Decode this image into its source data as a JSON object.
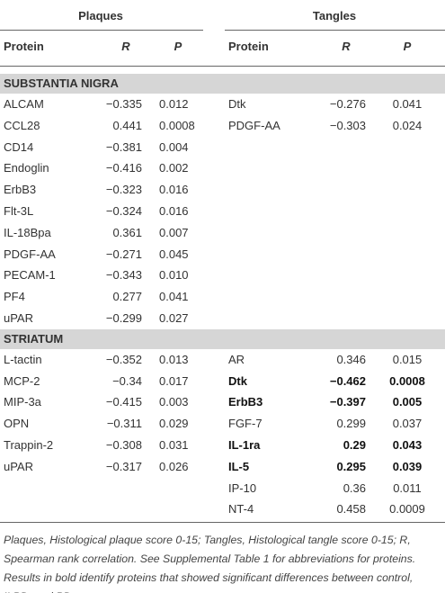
{
  "table": {
    "groups": [
      "Plaques",
      "Tangles"
    ],
    "columns": [
      "Protein",
      "R",
      "P",
      "Protein",
      "R",
      "P"
    ],
    "sections": [
      {
        "title": "SUBSTANTIA NIGRA",
        "plaques": [
          {
            "protein": "ALCAM",
            "r": "−0.335",
            "p": "0.012"
          },
          {
            "protein": "CCL28",
            "r": "0.441",
            "p": "0.0008"
          },
          {
            "protein": "CD14",
            "r": "−0.381",
            "p": "0.004"
          },
          {
            "protein": "Endoglin",
            "r": "−0.416",
            "p": "0.002"
          },
          {
            "protein": "ErbB3",
            "r": "−0.323",
            "p": "0.016"
          },
          {
            "protein": "Flt-3L",
            "r": "−0.324",
            "p": "0.016"
          },
          {
            "protein": "IL-18Bpa",
            "r": "0.361",
            "p": "0.007"
          },
          {
            "protein": "PDGF-AA",
            "r": "−0.271",
            "p": "0.045"
          },
          {
            "protein": "PECAM-1",
            "r": "−0.343",
            "p": "0.010"
          },
          {
            "protein": "PF4",
            "r": "0.277",
            "p": "0.041"
          },
          {
            "protein": "uPAR",
            "r": "−0.299",
            "p": "0.027"
          }
        ],
        "tangles": [
          {
            "protein": "Dtk",
            "r": "−0.276",
            "p": "0.041"
          },
          {
            "protein": "PDGF-AA",
            "r": "−0.303",
            "p": "0.024"
          }
        ]
      },
      {
        "title": "STRIATUM",
        "plaques": [
          {
            "protein": "L-tactin",
            "r": "−0.352",
            "p": "0.013"
          },
          {
            "protein": "MCP-2",
            "r": "−0.34",
            "p": "0.017"
          },
          {
            "protein": "MIP-3a",
            "r": "−0.415",
            "p": "0.003"
          },
          {
            "protein": "OPN",
            "r": "−0.311",
            "p": "0.029"
          },
          {
            "protein": "Trappin-2",
            "r": "−0.308",
            "p": "0.031"
          },
          {
            "protein": "uPAR",
            "r": "−0.317",
            "p": "0.026"
          }
        ],
        "tangles": [
          {
            "protein": "AR",
            "r": "0.346",
            "p": "0.015"
          },
          {
            "protein": "Dtk",
            "r": "−0.462",
            "p": "0.0008",
            "bold": true
          },
          {
            "protein": "ErbB3",
            "r": "−0.397",
            "p": "0.005",
            "bold": true
          },
          {
            "protein": "FGF-7",
            "r": "0.299",
            "p": "0.037"
          },
          {
            "protein": "IL-1ra",
            "r": "0.29",
            "p": "0.043",
            "bold": true
          },
          {
            "protein": "IL-5",
            "r": "0.295",
            "p": "0.039",
            "bold": true
          },
          {
            "protein": "IP-10",
            "r": "0.36",
            "p": "0.011"
          },
          {
            "protein": "NT-4",
            "r": "0.458",
            "p": "0.0009"
          }
        ]
      }
    ]
  },
  "footnote": "Plaques, Histological plaque score 0-15; Tangles, Histological tangle score 0-15; R, Spearman rank correlation. See Supplemental Table 1 for abbreviations for proteins. Results in bold identify proteins that showed significant differences between control, ILBD, and PD groups."
}
